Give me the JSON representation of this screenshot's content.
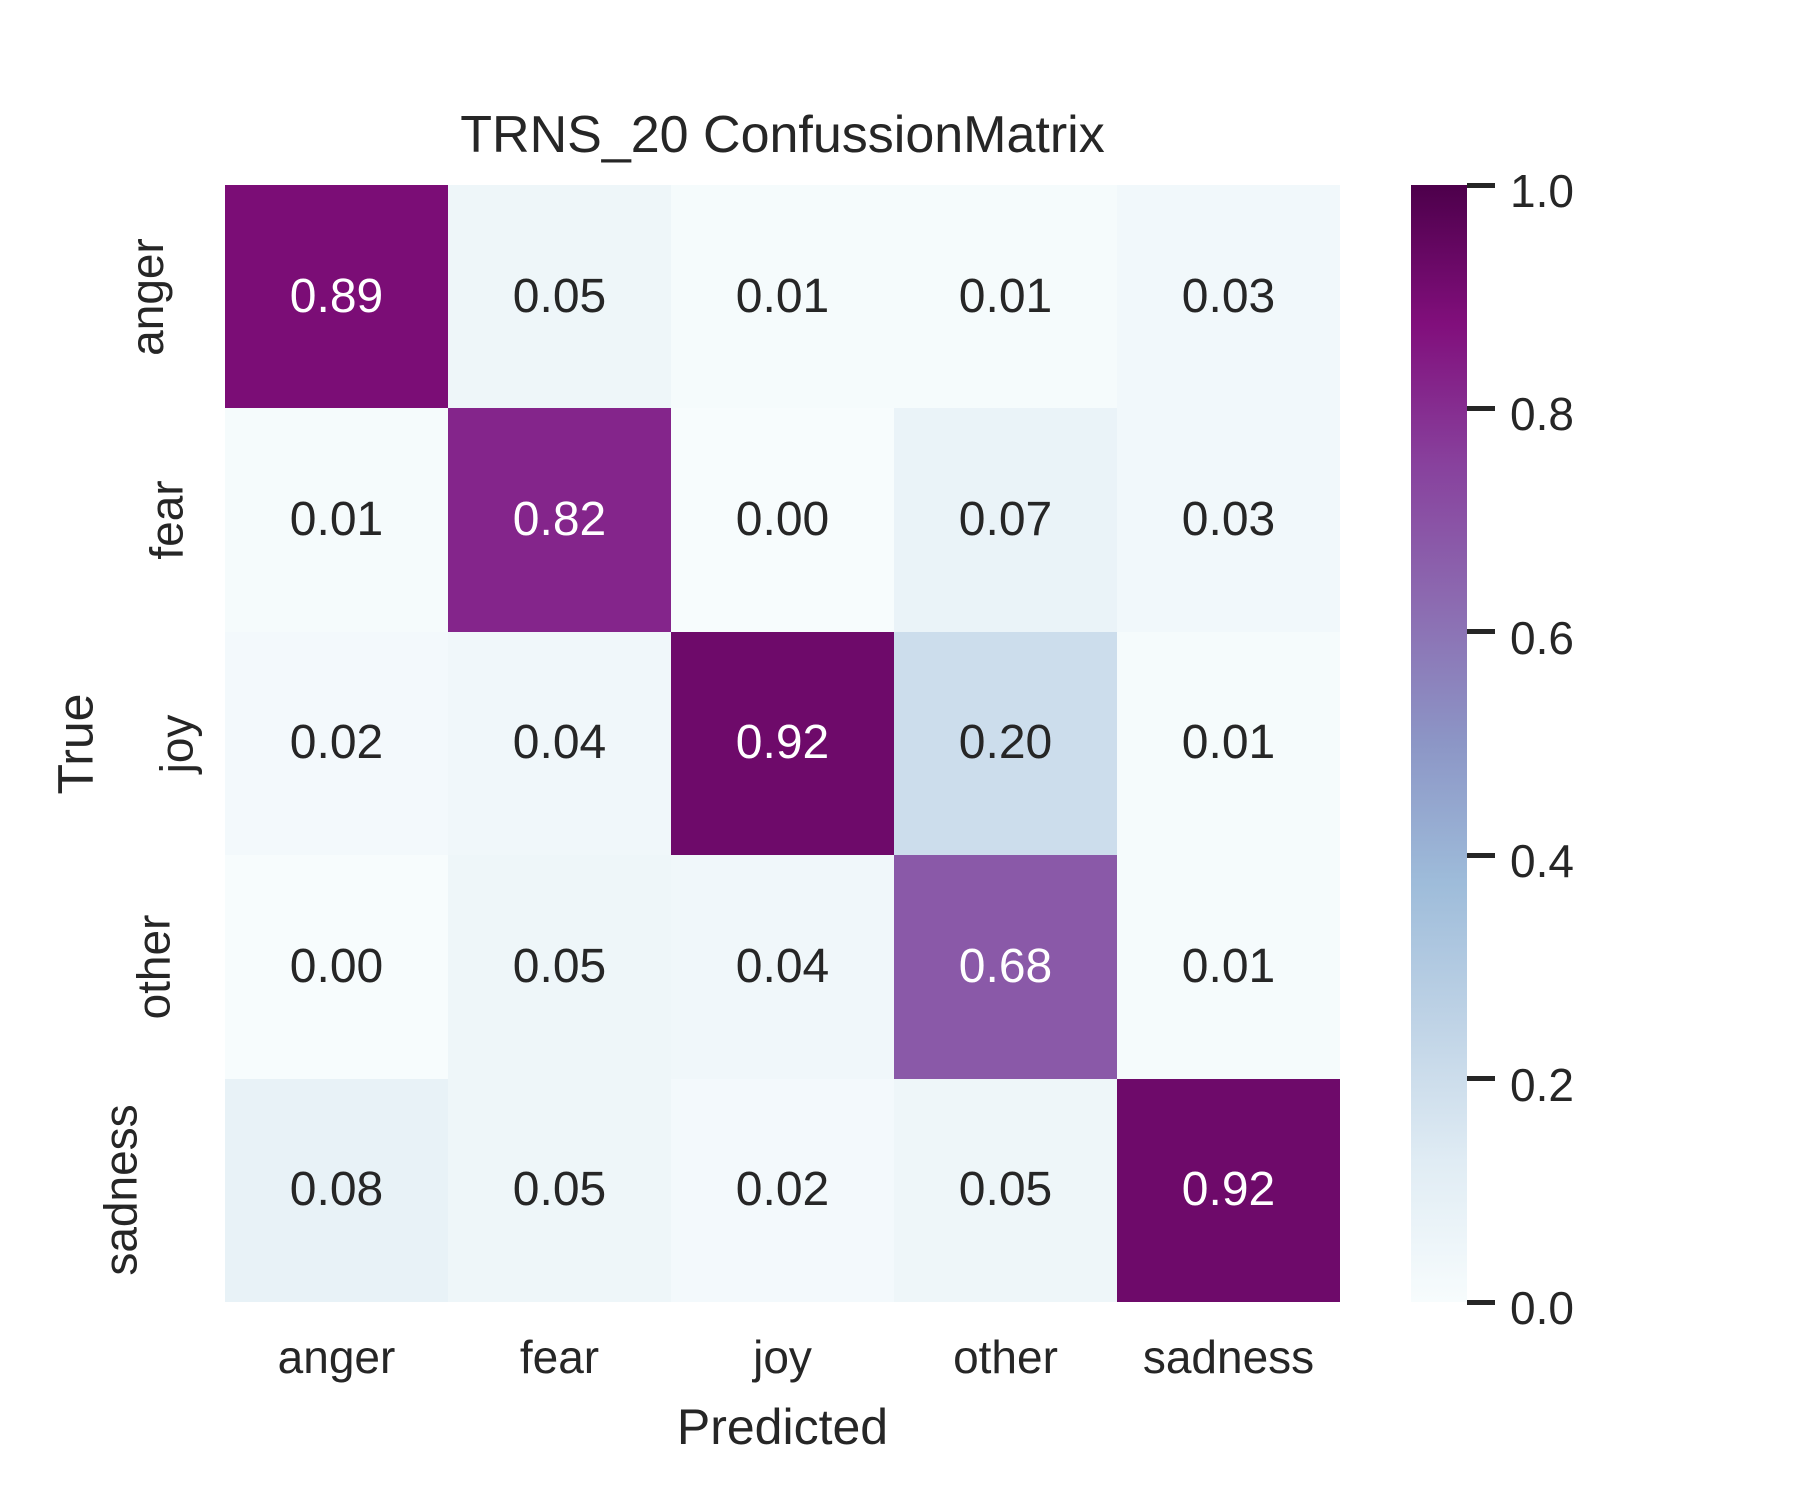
{
  "chart_data": {
    "type": "heatmap",
    "title": "TRNS_20 ConfussionMatrix",
    "xlabel": "Predicted",
    "ylabel": "True",
    "x_categories": [
      "anger",
      "fear",
      "joy",
      "other",
      "sadness"
    ],
    "y_categories": [
      "anger",
      "fear",
      "joy",
      "other",
      "sadness"
    ],
    "values": [
      [
        0.89,
        0.05,
        0.01,
        0.01,
        0.03
      ],
      [
        0.01,
        0.82,
        0.0,
        0.07,
        0.03
      ],
      [
        0.02,
        0.04,
        0.92,
        0.2,
        0.01
      ],
      [
        0.0,
        0.05,
        0.04,
        0.68,
        0.01
      ],
      [
        0.08,
        0.05,
        0.02,
        0.05,
        0.92
      ]
    ],
    "value_decimals": 2,
    "colormap": {
      "name": "BuPu",
      "stops": [
        "#f7fcfd",
        "#e0ecf4",
        "#bfd3e6",
        "#9ebcda",
        "#8c96c6",
        "#8c6bb1",
        "#88419d",
        "#810f7c",
        "#4d004b"
      ]
    },
    "colorbar": {
      "min": 0.0,
      "max": 1.0,
      "tick_values": [
        1.0,
        0.8,
        0.6,
        0.4,
        0.2,
        0.0
      ],
      "tick_labels": [
        "1.0",
        "0.8",
        "0.6",
        "0.4",
        "0.2",
        "0.0"
      ]
    },
    "text_colors": {
      "on_dark": "#ffffff",
      "on_light": "#262626"
    },
    "background": "#ffffff",
    "legend": "colorbar-right",
    "grid": false
  }
}
